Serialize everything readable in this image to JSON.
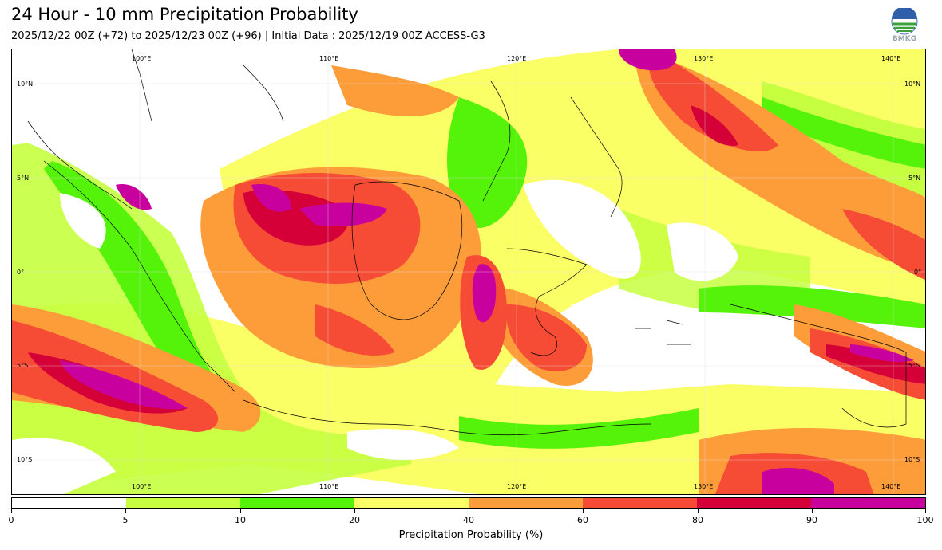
{
  "header": {
    "title": "24 Hour - 10 mm Precipitation Probability",
    "subtitle": "2025/12/22 00Z (+72) to 2025/12/23 00Z (+96) | Initial Data : 2025/12/19 00Z ACCESS-G3"
  },
  "logo": {
    "text": "BMKG",
    "icon": "bmkg-logo-icon"
  },
  "map": {
    "lon_labels_top": [
      "100°E",
      "110°E",
      "120°E",
      "130°E",
      "140°E"
    ],
    "lon_labels_bottom": [
      "100°E",
      "110°E",
      "120°E",
      "130°E",
      "140°E"
    ],
    "lat_labels_left": [
      "10°N",
      "5°N",
      "0°",
      "5°S",
      "10°S"
    ],
    "lat_labels_right": [
      "10°N",
      "5°N",
      "0°",
      "5°S",
      "10°S"
    ]
  },
  "colorbar": {
    "colors": [
      "#ffffff",
      "#c5ff3f",
      "#55f20a",
      "#fbff66",
      "#fd9d3a",
      "#f64c35",
      "#d40037",
      "#c8009e"
    ],
    "ticks": [
      "0",
      "5",
      "10",
      "20",
      "40",
      "60",
      "80",
      "90",
      "100"
    ],
    "label": "Precipitation Probability (%)"
  }
}
